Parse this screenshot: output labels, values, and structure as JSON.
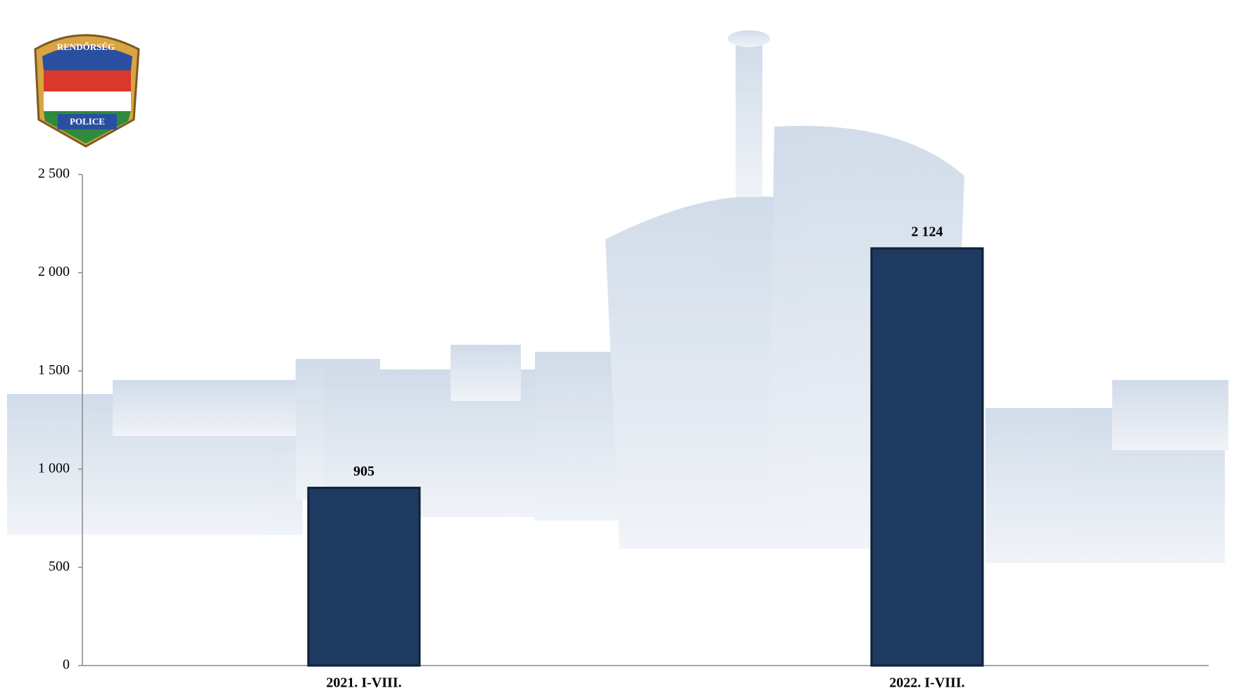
{
  "logo": {
    "upper": "RENDŐRSÉG",
    "lower": "POLICE"
  },
  "chart_data": {
    "type": "bar",
    "categories": [
      "2021. I-VIII.",
      "2022. I-VIII."
    ],
    "values": [
      905,
      2124
    ],
    "value_labels": [
      "905",
      "2 124"
    ],
    "color": "#1f3a60",
    "ylim": [
      0,
      2500
    ],
    "yticks": [
      0,
      500,
      {
        "value": 1000,
        "label": "1 000"
      },
      {
        "value": 1500,
        "label": "1 500"
      },
      {
        "value": 2000,
        "label": "2 000"
      },
      {
        "value": 2500,
        "label": "2 500"
      }
    ],
    "grid": false
  }
}
